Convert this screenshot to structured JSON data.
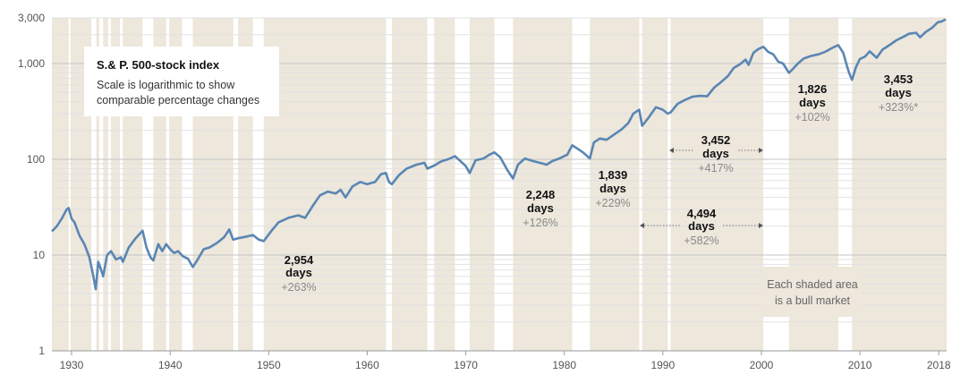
{
  "chart_data": {
    "type": "line",
    "title": "S.& P. 500-stock index",
    "subtitle": [
      "Scale is logarithmic to show",
      "comparable percentage changes"
    ],
    "yscale": "log",
    "ylim": [
      1,
      3000
    ],
    "xlim": [
      1928,
      2018.8
    ],
    "yticks": [
      {
        "value": 1,
        "label": "1"
      },
      {
        "value": 10,
        "label": "10"
      },
      {
        "value": 100,
        "label": "100"
      },
      {
        "value": 1000,
        "label": "1,000"
      },
      {
        "value": 3000,
        "label": "3,000"
      }
    ],
    "xticks": [
      {
        "value": 1930,
        "label": "1930"
      },
      {
        "value": 1940,
        "label": "1940"
      },
      {
        "value": 1950,
        "label": "1950"
      },
      {
        "value": 1960,
        "label": "1960"
      },
      {
        "value": 1970,
        "label": "1970"
      },
      {
        "value": 1980,
        "label": "1980"
      },
      {
        "value": 1990,
        "label": "1990"
      },
      {
        "value": 2000,
        "label": "2000"
      },
      {
        "value": 2010,
        "label": "2010"
      },
      {
        "value": 2018,
        "label": "2018"
      }
    ],
    "bull_markets": [
      [
        1928.0,
        1929.7
      ],
      [
        1929.9,
        1932.0
      ],
      [
        1932.5,
        1932.8
      ],
      [
        1933.2,
        1933.7
      ],
      [
        1934.0,
        1934.9
      ],
      [
        1935.2,
        1937.2
      ],
      [
        1938.3,
        1939.6
      ],
      [
        1939.9,
        1941.2
      ],
      [
        1942.3,
        1946.4
      ],
      [
        1946.9,
        1948.4
      ],
      [
        1949.5,
        1961.9
      ],
      [
        1962.5,
        1966.1
      ],
      [
        1966.8,
        1968.9
      ],
      [
        1970.4,
        1972.9
      ],
      [
        1974.8,
        1980.8
      ],
      [
        1982.6,
        1987.6
      ],
      [
        1987.9,
        1990.5
      ],
      [
        1990.8,
        2000.2
      ],
      [
        2002.8,
        2007.8
      ],
      [
        2009.2,
        2018.8
      ]
    ],
    "series": [
      {
        "name": "S&P 500",
        "color": "#5a86b3",
        "x": [
          1928.0,
          1928.5,
          1929.0,
          1929.5,
          1929.7,
          1930.0,
          1930.3,
          1930.8,
          1931.3,
          1931.8,
          1932.2,
          1932.45,
          1932.7,
          1932.9,
          1933.2,
          1933.6,
          1934.0,
          1934.5,
          1935.0,
          1935.2,
          1935.8,
          1936.5,
          1937.2,
          1937.6,
          1938.0,
          1938.3,
          1938.8,
          1939.2,
          1939.6,
          1940.0,
          1940.4,
          1940.8,
          1941.3,
          1941.8,
          1942.3,
          1942.8,
          1943.4,
          1944.0,
          1944.8,
          1945.5,
          1946.0,
          1946.4,
          1946.9,
          1947.6,
          1948.4,
          1949.0,
          1949.5,
          1950.3,
          1951.0,
          1952.0,
          1953.0,
          1953.7,
          1954.5,
          1955.2,
          1956.0,
          1956.8,
          1957.3,
          1957.8,
          1958.5,
          1959.3,
          1960.0,
          1960.8,
          1961.4,
          1961.9,
          1962.2,
          1962.5,
          1963.2,
          1964.0,
          1965.0,
          1965.8,
          1966.1,
          1966.8,
          1967.5,
          1968.2,
          1968.9,
          1969.5,
          1970.0,
          1970.4,
          1971.0,
          1971.8,
          1972.4,
          1972.9,
          1973.5,
          1974.2,
          1974.8,
          1975.3,
          1976.0,
          1976.8,
          1977.5,
          1978.2,
          1978.8,
          1979.5,
          1980.3,
          1980.8,
          1981.3,
          1981.9,
          1982.6,
          1983.0,
          1983.6,
          1984.3,
          1985.0,
          1985.8,
          1986.5,
          1987.0,
          1987.6,
          1987.9,
          1988.5,
          1989.3,
          1990.0,
          1990.5,
          1990.8,
          1991.5,
          1992.3,
          1993.0,
          1993.8,
          1994.5,
          1995.2,
          1995.9,
          1996.6,
          1997.2,
          1997.8,
          1998.4,
          1998.7,
          1999.2,
          1999.7,
          2000.2,
          2000.7,
          2001.2,
          2001.7,
          2002.2,
          2002.8,
          2003.2,
          2003.7,
          2004.3,
          2005.0,
          2005.8,
          2006.5,
          2007.2,
          2007.8,
          2008.3,
          2008.7,
          2008.9,
          2009.2,
          2009.6,
          2010.0,
          2010.5,
          2011.0,
          2011.7,
          2012.3,
          2013.0,
          2013.7,
          2014.4,
          2015.0,
          2015.7,
          2016.1,
          2016.7,
          2017.3,
          2017.9,
          2018.3,
          2018.7
        ],
        "y": [
          17.7,
          20,
          24,
          30,
          31,
          24,
          22,
          16,
          13,
          9.5,
          6,
          4.4,
          8.5,
          7.5,
          6,
          10,
          11,
          9,
          9.5,
          8.5,
          12,
          15,
          18,
          12,
          9.5,
          8.8,
          13,
          11,
          13,
          11.5,
          10.5,
          11,
          9.7,
          9.2,
          7.5,
          9,
          11.5,
          12,
          13.5,
          15.5,
          18.5,
          14.5,
          15,
          15.5,
          16.2,
          14.5,
          14,
          18,
          22,
          24.5,
          26,
          24.5,
          33,
          42,
          46,
          44,
          48,
          40,
          52,
          58,
          55,
          58,
          70,
          72,
          58,
          55,
          68,
          80,
          88,
          92,
          80,
          86,
          95,
          100,
          108,
          95,
          85,
          72,
          98,
          102,
          112,
          118,
          105,
          78,
          63,
          88,
          102,
          96,
          92,
          88,
          96,
          102,
          112,
          140,
          130,
          118,
          102,
          150,
          165,
          160,
          180,
          205,
          240,
          300,
          330,
          224,
          268,
          350,
          330,
          300,
          310,
          380,
          420,
          450,
          460,
          455,
          560,
          640,
          740,
          900,
          980,
          1100,
          970,
          1300,
          1420,
          1500,
          1320,
          1250,
          1050,
          1000,
          800,
          880,
          1000,
          1130,
          1200,
          1250,
          1330,
          1460,
          1560,
          1300,
          930,
          800,
          676,
          920,
          1120,
          1180,
          1340,
          1150,
          1400,
          1560,
          1750,
          1900,
          2050,
          2100,
          1880,
          2150,
          2350,
          2700,
          2750,
          2900
        ]
      }
    ],
    "annotations": [
      {
        "days": "2,954",
        "unit": "days",
        "pct": "+263%"
      },
      {
        "days": "2,248",
        "unit": "days",
        "pct": "+126%"
      },
      {
        "days": "1,839",
        "unit": "days",
        "pct": "+229%"
      },
      {
        "days": "3,452",
        "unit": "days",
        "pct": "+417%"
      },
      {
        "days": "4,494",
        "unit": "days",
        "pct": "+582%"
      },
      {
        "days": "1,826",
        "unit": "days",
        "pct": "+102%"
      },
      {
        "days": "3,453",
        "unit": "days",
        "pct": "+323%*"
      }
    ],
    "note": [
      "Each shaded area",
      "is a bull market"
    ],
    "colors": {
      "shade": "#ede7dc",
      "line": "#5a86b3",
      "grid": "#d3d3d3"
    }
  }
}
